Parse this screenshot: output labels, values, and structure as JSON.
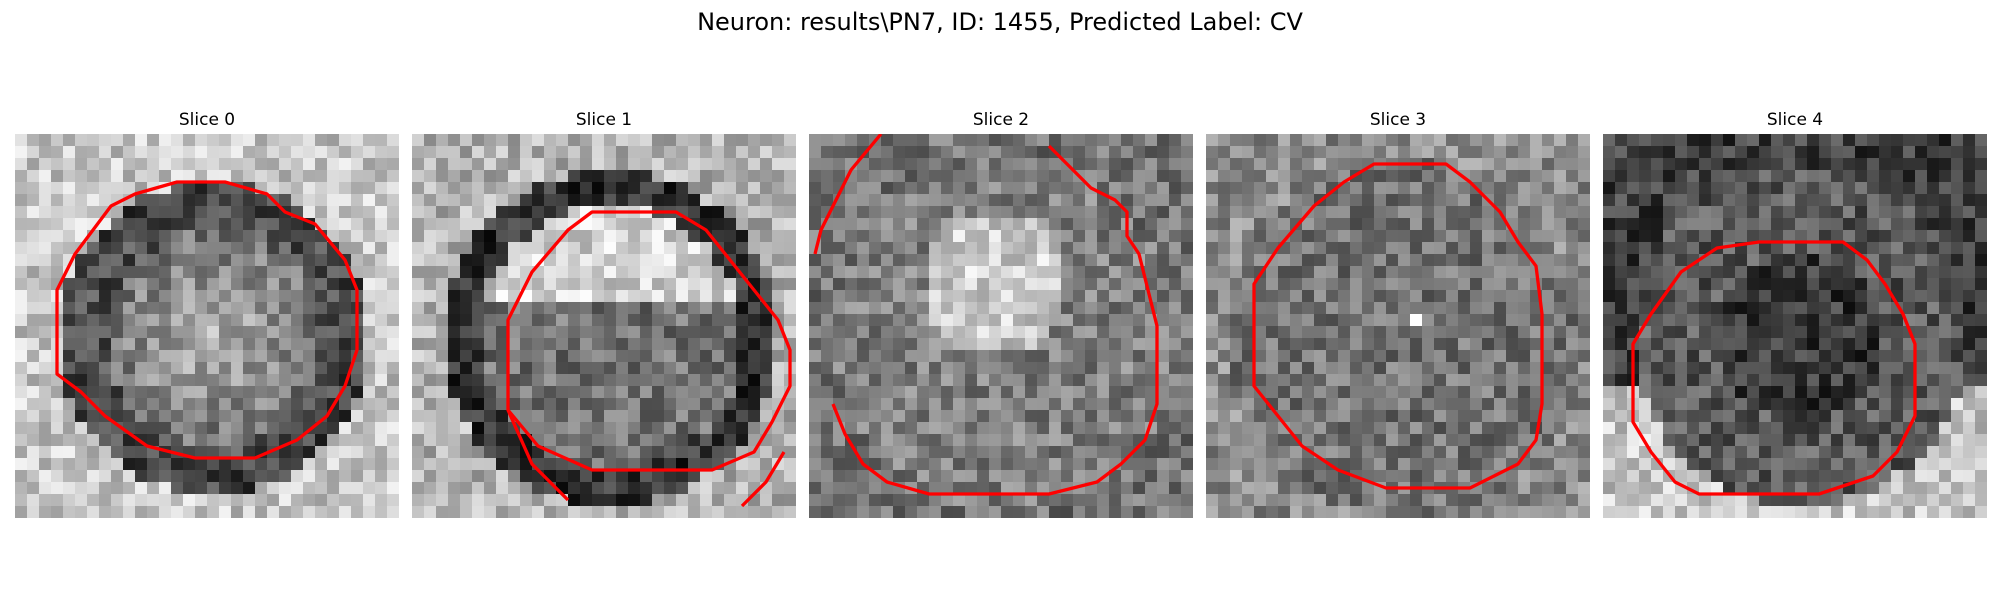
{
  "figure": {
    "title": "Neuron: results\\PN7, ID: 1455, Predicted Label: CV"
  },
  "panels": [
    {
      "title": "Slice 0",
      "pattern": "ring-center",
      "contour": [
        [
          27,
          8
        ],
        [
          35,
          8
        ],
        [
          42,
          10
        ],
        [
          45,
          13
        ],
        [
          50,
          15
        ],
        [
          55,
          21
        ],
        [
          57,
          26
        ],
        [
          57,
          36
        ],
        [
          55,
          42
        ],
        [
          52,
          47
        ],
        [
          47,
          51
        ],
        [
          40,
          54
        ],
        [
          30,
          54
        ],
        [
          22,
          52
        ],
        [
          15,
          47
        ],
        [
          11,
          43
        ],
        [
          7,
          40
        ],
        [
          7,
          26
        ],
        [
          10,
          20
        ],
        [
          16,
          12
        ],
        [
          20,
          10
        ]
      ],
      "segments": []
    },
    {
      "title": "Slice 1",
      "pattern": "bright-top",
      "contour": [
        [
          30,
          13
        ],
        [
          44,
          13
        ],
        [
          49,
          16
        ],
        [
          53,
          21
        ],
        [
          57,
          26
        ],
        [
          61,
          31
        ],
        [
          63,
          36
        ],
        [
          63,
          42
        ],
        [
          60,
          48
        ],
        [
          57,
          53
        ],
        [
          50,
          56
        ],
        [
          30,
          56
        ],
        [
          21,
          52
        ],
        [
          16,
          46
        ],
        [
          16,
          31
        ],
        [
          20,
          23
        ],
        [
          26,
          16
        ]
      ],
      "segments": [
        [
          [
            16,
            46
          ],
          [
            20,
            55
          ],
          [
            26,
            61
          ]
        ],
        [
          [
            62,
            53
          ],
          [
            59,
            58
          ],
          [
            55,
            62
          ]
        ]
      ]
    },
    {
      "title": "Slice 2",
      "pattern": "bright-center",
      "contour": [
        [
          40,
          2
        ],
        [
          43,
          5
        ],
        [
          45,
          7
        ],
        [
          47,
          9
        ],
        [
          51,
          11
        ],
        [
          53,
          13
        ],
        [
          53,
          17
        ],
        [
          55,
          20
        ],
        [
          56,
          24
        ],
        [
          57,
          28
        ],
        [
          58,
          32
        ],
        [
          58,
          45
        ],
        [
          56,
          51
        ],
        [
          52,
          55
        ],
        [
          48,
          58
        ],
        [
          40,
          60
        ],
        [
          20,
          60
        ],
        [
          13,
          58
        ],
        [
          9,
          55
        ],
        [
          6,
          50
        ],
        [
          4,
          45
        ]
      ],
      "segments": [
        [
          [
            12,
            0
          ],
          [
            7,
            6
          ],
          [
            4,
            12
          ],
          [
            2,
            16
          ],
          [
            1,
            20
          ]
        ]
      ]
    },
    {
      "title": "Slice 3",
      "pattern": "bright-dot",
      "contour": [
        [
          28,
          5
        ],
        [
          40,
          5
        ],
        [
          44,
          8
        ],
        [
          49,
          13
        ],
        [
          52,
          18
        ],
        [
          55,
          22
        ],
        [
          56,
          30
        ],
        [
          56,
          45
        ],
        [
          55,
          51
        ],
        [
          52,
          55
        ],
        [
          44,
          59
        ],
        [
          30,
          59
        ],
        [
          22,
          56
        ],
        [
          16,
          52
        ],
        [
          12,
          47
        ],
        [
          8,
          42
        ],
        [
          8,
          25
        ],
        [
          12,
          19
        ],
        [
          18,
          12
        ],
        [
          23,
          8
        ]
      ],
      "segments": []
    },
    {
      "title": "Slice 4",
      "pattern": "dark-center",
      "contour": [
        [
          26,
          18
        ],
        [
          40,
          18
        ],
        [
          44,
          21
        ],
        [
          47,
          25
        ],
        [
          50,
          30
        ],
        [
          52,
          35
        ],
        [
          52,
          47
        ],
        [
          49,
          53
        ],
        [
          45,
          57
        ],
        [
          36,
          60
        ],
        [
          16,
          60
        ],
        [
          12,
          58
        ],
        [
          8,
          53
        ],
        [
          5,
          48
        ],
        [
          5,
          35
        ],
        [
          8,
          30
        ],
        [
          13,
          23
        ],
        [
          19,
          19
        ]
      ],
      "segments": []
    }
  ],
  "colors": {
    "contour": "#ff0000"
  }
}
